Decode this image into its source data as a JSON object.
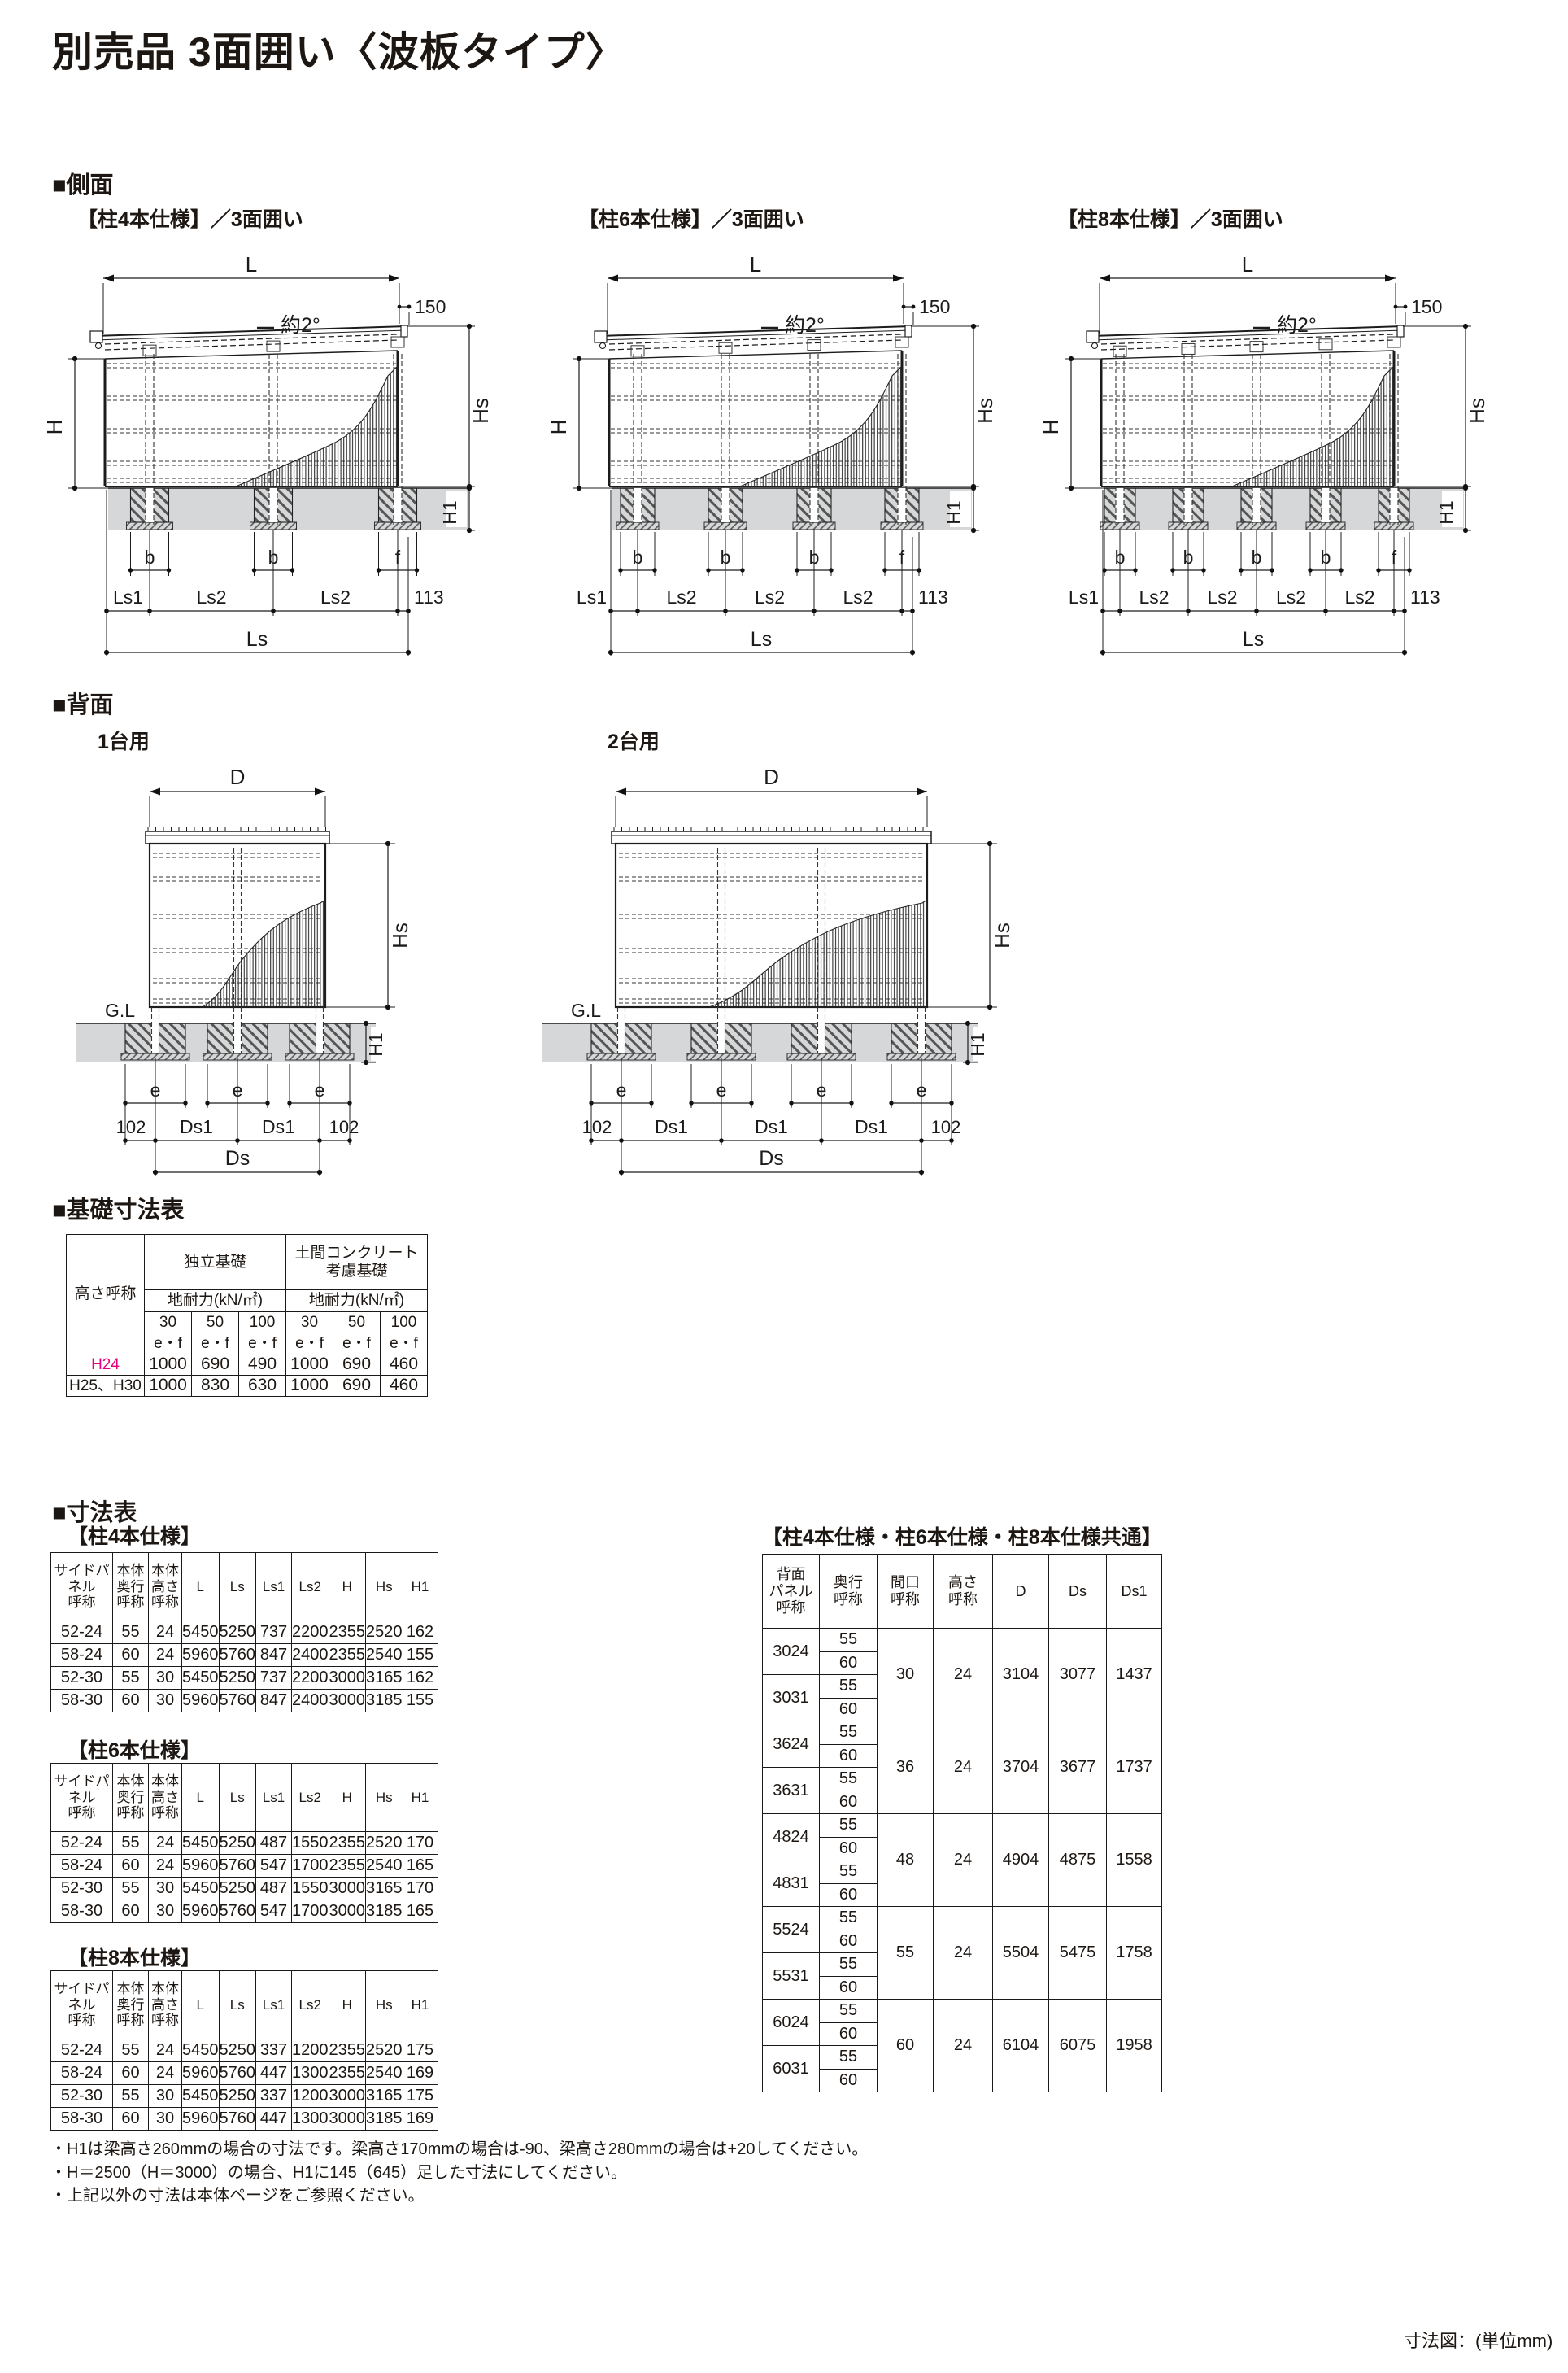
{
  "page": {
    "title": "別売品 3面囲い〈波板タイプ〉",
    "unit_note": "寸法図：(単位mm)"
  },
  "sections": {
    "side": {
      "heading": "■側面",
      "labels": {
        "L": "L",
        "off": "150",
        "angle": "約2°",
        "H": "H",
        "Hs": "Hs",
        "H1": "H1",
        "b": "b",
        "f": "f",
        "Ls1": "Ls1",
        "Ls2": "Ls2",
        "off2": "113",
        "Ls": "Ls"
      },
      "variants": [
        {
          "title": "【柱4本仕様】／3面囲い"
        },
        {
          "title": "【柱6本仕様】／3面囲い"
        },
        {
          "title": "【柱8本仕様】／3面囲い"
        }
      ]
    },
    "back": {
      "heading": "■背面",
      "labels": {
        "D": "D",
        "GL": "G.L",
        "Hs": "Hs",
        "H1": "H1",
        "e": "e",
        "off": "102",
        "Ds1": "Ds1",
        "Ds": "Ds"
      },
      "variants": [
        {
          "title": "1台用"
        },
        {
          "title": "2台用"
        }
      ]
    }
  },
  "foundation": {
    "heading": "■基礎寸法表",
    "col_height": "高さ呼称",
    "group1": "独立基礎",
    "group2": "土間コンクリート\n考慮基礎",
    "subheader": "地耐力(kN/㎡)",
    "loads": [
      "30",
      "50",
      "100"
    ],
    "ef": "e・f",
    "rows": [
      {
        "name": "H24",
        "highlight": true,
        "values": [
          "1000",
          "690",
          "490",
          "1000",
          "690",
          "460"
        ]
      },
      {
        "name": "H25、H30",
        "highlight": false,
        "values": [
          "1000",
          "830",
          "630",
          "1000",
          "690",
          "460"
        ]
      }
    ]
  },
  "dims": {
    "heading": "■寸法表",
    "headers": [
      "サイドパネル\n呼称",
      "本体\n奥行\n呼称",
      "本体\n高さ\n呼称",
      "L",
      "Ls",
      "Ls1",
      "Ls2",
      "H",
      "Hs",
      "H1"
    ],
    "tables": [
      {
        "title": "【柱4本仕様】",
        "rows": [
          [
            "52-24",
            "55",
            "24",
            "5450",
            "5250",
            "737",
            "2200",
            "2355",
            "2520",
            "162"
          ],
          [
            "58-24",
            "60",
            "24",
            "5960",
            "5760",
            "847",
            "2400",
            "2355",
            "2540",
            "155"
          ],
          [
            "52-30",
            "55",
            "30",
            "5450",
            "5250",
            "737",
            "2200",
            "3000",
            "3165",
            "162"
          ],
          [
            "58-30",
            "60",
            "30",
            "5960",
            "5760",
            "847",
            "2400",
            "3000",
            "3185",
            "155"
          ]
        ]
      },
      {
        "title": "【柱6本仕様】",
        "rows": [
          [
            "52-24",
            "55",
            "24",
            "5450",
            "5250",
            "487",
            "1550",
            "2355",
            "2520",
            "170"
          ],
          [
            "58-24",
            "60",
            "24",
            "5960",
            "5760",
            "547",
            "1700",
            "2355",
            "2540",
            "165"
          ],
          [
            "52-30",
            "55",
            "30",
            "5450",
            "5250",
            "487",
            "1550",
            "3000",
            "3165",
            "170"
          ],
          [
            "58-30",
            "60",
            "30",
            "5960",
            "5760",
            "547",
            "1700",
            "3000",
            "3185",
            "165"
          ]
        ]
      },
      {
        "title": "【柱8本仕様】",
        "rows": [
          [
            "52-24",
            "55",
            "24",
            "5450",
            "5250",
            "337",
            "1200",
            "2355",
            "2520",
            "175"
          ],
          [
            "58-24",
            "60",
            "24",
            "5960",
            "5760",
            "447",
            "1300",
            "2355",
            "2540",
            "169"
          ],
          [
            "52-30",
            "55",
            "30",
            "5450",
            "5250",
            "337",
            "1200",
            "3000",
            "3165",
            "175"
          ],
          [
            "58-30",
            "60",
            "30",
            "5960",
            "5760",
            "447",
            "1300",
            "3000",
            "3185",
            "169"
          ]
        ]
      }
    ],
    "common": {
      "title": "【柱4本仕様・柱6本仕様・柱8本仕様共通】",
      "headers": [
        "背面\nパネル\n呼称",
        "奥行\n呼称",
        "間口\n呼称",
        "高さ\n呼称",
        "D",
        "Ds",
        "Ds1"
      ],
      "groups": [
        {
          "panels": [
            {
              "name": "3024",
              "depths": [
                "55",
                "60"
              ]
            },
            {
              "name": "3031",
              "depths": [
                "55",
                "60"
              ]
            }
          ],
          "span": [
            "30",
            "24",
            "3104",
            "3077",
            "1437"
          ]
        },
        {
          "panels": [
            {
              "name": "3624",
              "depths": [
                "55",
                "60"
              ]
            },
            {
              "name": "3631",
              "depths": [
                "55",
                "60"
              ]
            }
          ],
          "span": [
            "36",
            "24",
            "3704",
            "3677",
            "1737"
          ]
        },
        {
          "panels": [
            {
              "name": "4824",
              "depths": [
                "55",
                "60"
              ]
            },
            {
              "name": "4831",
              "depths": [
                "55",
                "60"
              ]
            }
          ],
          "span": [
            "48",
            "24",
            "4904",
            "4875",
            "1558"
          ]
        },
        {
          "panels": [
            {
              "name": "5524",
              "depths": [
                "55",
                "60"
              ]
            },
            {
              "name": "5531",
              "depths": [
                "55",
                "60"
              ]
            }
          ],
          "span": [
            "55",
            "24",
            "5504",
            "5475",
            "1758"
          ]
        },
        {
          "panels": [
            {
              "name": "6024",
              "depths": [
                "55",
                "60"
              ]
            },
            {
              "name": "6031",
              "depths": [
                "55",
                "60"
              ]
            }
          ],
          "span": [
            "60",
            "24",
            "6104",
            "6075",
            "1958"
          ]
        }
      ]
    },
    "notes": [
      "・H1は梁高さ260mmの場合の寸法です。梁高さ170mmの場合は-90、梁高さ280mmの場合は+20してください。",
      "・H＝2500（H＝3000）の場合、H1に145（645）足した寸法にしてください。",
      "・上記以外の寸法は本体ページをご参照ください。"
    ]
  }
}
